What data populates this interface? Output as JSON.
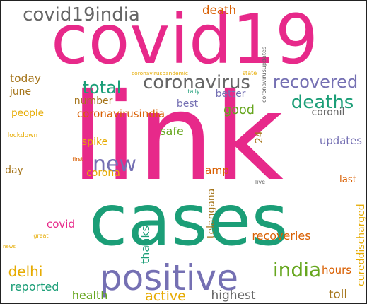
{
  "words": [
    {
      "id": "link",
      "text": "link",
      "color": "#e7298a"
    },
    {
      "id": "cases",
      "text": "cases",
      "color": "#1b9e77"
    },
    {
      "id": "covid19",
      "text": "covid19",
      "color": "#e7298a"
    },
    {
      "id": "positive",
      "text": "positive",
      "color": "#7570b3"
    },
    {
      "id": "covid19india",
      "text": "covid19india",
      "color": "#666666"
    },
    {
      "id": "deaths",
      "text": "deaths",
      "color": "#1b9e77"
    },
    {
      "id": "coronavirus",
      "text": "coronavirus",
      "color": "#666666"
    },
    {
      "id": "india",
      "text": "india",
      "color": "#66a61e"
    },
    {
      "id": "recovered",
      "text": "recovered",
      "color": "#7570b3"
    },
    {
      "id": "total",
      "text": "total",
      "color": "#1b9e77"
    },
    {
      "id": "new",
      "text": "new",
      "color": "#7570b3"
    },
    {
      "id": "active",
      "text": "active",
      "color": "#e6ab02"
    },
    {
      "id": "delhi",
      "text": "delhi",
      "color": "#e6ab02"
    },
    {
      "id": "amp",
      "text": "amp",
      "color": "#d95f02"
    },
    {
      "id": "covid",
      "text": "covid",
      "color": "#e7298a"
    },
    {
      "id": "highest",
      "text": "highest",
      "color": "#666666"
    },
    {
      "id": "coronavirusindia",
      "text": "coronavirusindia",
      "color": "#d95f02"
    },
    {
      "id": "recoveries",
      "text": "recoveries",
      "color": "#d95f02"
    },
    {
      "id": "reported",
      "text": "reported",
      "color": "#1b9e77"
    },
    {
      "id": "death",
      "text": "death",
      "color": "#d95f02"
    },
    {
      "id": "good",
      "text": "good",
      "color": "#66a61e"
    },
    {
      "id": "updates",
      "text": "updates",
      "color": "#7570b3"
    },
    {
      "id": "last",
      "text": "last",
      "color": "#d95f02"
    },
    {
      "id": "hours",
      "text": "hours",
      "color": "#d95f02"
    },
    {
      "id": "toll",
      "text": "toll",
      "color": "#a6761d"
    },
    {
      "id": "coronil",
      "text": "coronil",
      "color": "#666666"
    },
    {
      "id": "better",
      "text": "better",
      "color": "#7570b3"
    },
    {
      "id": "best",
      "text": "best",
      "color": "#7570b3"
    },
    {
      "id": "number",
      "text": "number",
      "color": "#a6761d"
    },
    {
      "id": "safe",
      "text": "safe",
      "color": "#66a61e"
    },
    {
      "id": "spike",
      "text": "spike",
      "color": "#e6ab02"
    },
    {
      "id": "corona",
      "text": "corona",
      "color": "#e6ab02"
    },
    {
      "id": "today",
      "text": "today",
      "color": "#a6761d"
    },
    {
      "id": "june",
      "text": "june",
      "color": "#a6761d"
    },
    {
      "id": "people",
      "text": "people",
      "color": "#e6ab02"
    },
    {
      "id": "day",
      "text": "day",
      "color": "#a6761d"
    },
    {
      "id": "health",
      "text": "health",
      "color": "#66a61e"
    },
    {
      "id": "thanks",
      "text": "thanks",
      "color": "#1b9e77"
    },
    {
      "id": "telangana",
      "text": "telangana",
      "color": "#a6761d"
    },
    {
      "id": "cureddischarged",
      "text": "cureddischarged",
      "color": "#e6ab02"
    },
    {
      "id": "n24",
      "text": "24",
      "color": "#a6761d"
    },
    {
      "id": "coronaviruspandemic",
      "text": "coronaviruspandemic",
      "color": "#e6ab02"
    },
    {
      "id": "coronavirusupdates",
      "text": "coronavirusupdates",
      "color": "#666666"
    },
    {
      "id": "state",
      "text": "state",
      "color": "#e6ab02"
    },
    {
      "id": "tally",
      "text": "tally",
      "color": "#1b9e77"
    },
    {
      "id": "lockdown",
      "text": "lockdown",
      "color": "#e6ab02"
    },
    {
      "id": "first",
      "text": "first",
      "color": "#d95f02"
    },
    {
      "id": "live",
      "text": "live",
      "color": "#666666"
    },
    {
      "id": "great",
      "text": "great",
      "color": "#e6ab02"
    },
    {
      "id": "news",
      "text": "news",
      "color": "#e6ab02"
    }
  ]
}
